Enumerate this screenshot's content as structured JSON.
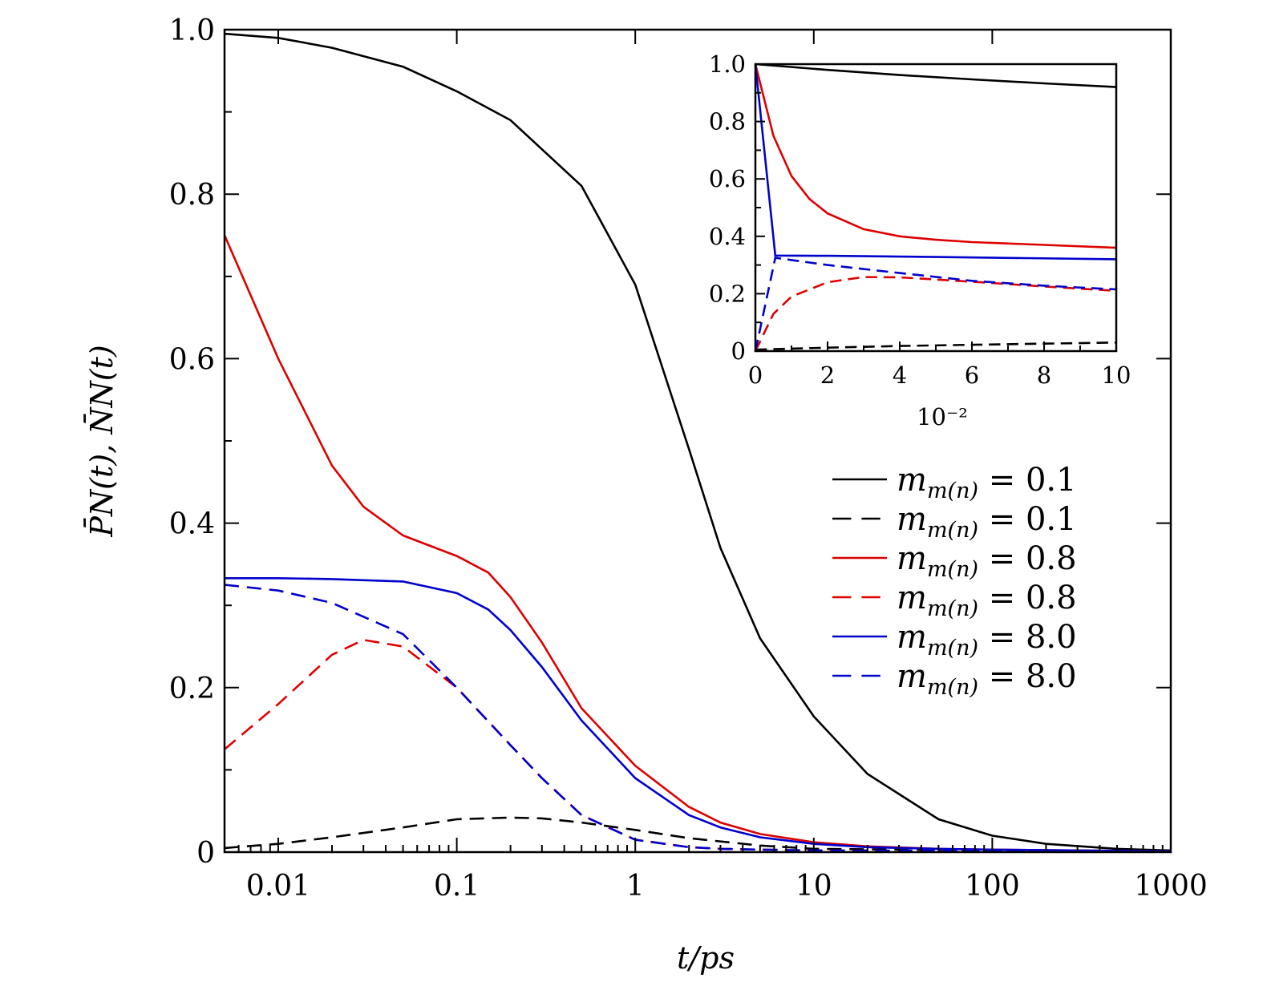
{
  "chart_data": [
    {
      "type": "line",
      "title": "",
      "xlabel": "t/ps",
      "ylabel": "P̄N(t), N̄N(t)",
      "xscale": "log",
      "xlim": [
        0.005,
        1000
      ],
      "ylim": [
        0,
        1.0
      ],
      "xticks": [
        {
          "value": 0.01,
          "label": "0.01"
        },
        {
          "value": 0.1,
          "label": "0.1"
        },
        {
          "value": 1,
          "label": "1"
        },
        {
          "value": 10,
          "label": "10"
        },
        {
          "value": 100,
          "label": "100"
        },
        {
          "value": 1000,
          "label": "1000"
        }
      ],
      "yticks": [
        {
          "value": 0,
          "label": "0"
        },
        {
          "value": 0.2,
          "label": "0.2"
        },
        {
          "value": 0.4,
          "label": "0.4"
        },
        {
          "value": 0.6,
          "label": "0.6"
        },
        {
          "value": 0.8,
          "label": "0.8"
        },
        {
          "value": 1.0,
          "label": "1.0"
        }
      ],
      "grid": false,
      "legend_position": "right",
      "series": [
        {
          "name": "m_m(n) = 0.1",
          "legend_var": "m",
          "legend_sub": "m(n)",
          "legend_value": "0.1",
          "color": "#000000",
          "dash": "solid",
          "x": [
            0.005,
            0.01,
            0.02,
            0.05,
            0.1,
            0.2,
            0.5,
            1,
            2,
            3,
            5,
            10,
            20,
            50,
            100,
            200,
            500,
            1000
          ],
          "y": [
            0.995,
            0.99,
            0.978,
            0.955,
            0.925,
            0.89,
            0.81,
            0.69,
            0.49,
            0.37,
            0.26,
            0.165,
            0.095,
            0.04,
            0.02,
            0.01,
            0.004,
            0.002
          ]
        },
        {
          "name": "m_m(n) = 0.1",
          "legend_var": "m",
          "legend_sub": "m(n)",
          "legend_value": "0.1",
          "color": "#000000",
          "dash": "dashed",
          "x": [
            0.005,
            0.01,
            0.02,
            0.05,
            0.1,
            0.2,
            0.3,
            0.5,
            1,
            2,
            5,
            10,
            100,
            1000
          ],
          "y": [
            0.005,
            0.01,
            0.018,
            0.03,
            0.04,
            0.042,
            0.041,
            0.036,
            0.027,
            0.017,
            0.008,
            0.004,
            0.002,
            0.001
          ]
        },
        {
          "name": "m_m(n) = 0.8",
          "legend_var": "m",
          "legend_sub": "m(n)",
          "legend_value": "0.8",
          "color": "#dd0000",
          "dash": "solid",
          "x": [
            0.005,
            0.01,
            0.02,
            0.03,
            0.05,
            0.1,
            0.15,
            0.2,
            0.3,
            0.5,
            1,
            2,
            3,
            5,
            10,
            20,
            50,
            100,
            1000
          ],
          "y": [
            0.75,
            0.6,
            0.47,
            0.42,
            0.385,
            0.36,
            0.34,
            0.31,
            0.255,
            0.175,
            0.105,
            0.055,
            0.036,
            0.022,
            0.012,
            0.007,
            0.004,
            0.003,
            0.001
          ]
        },
        {
          "name": "m_m(n) = 0.8",
          "legend_var": "m",
          "legend_sub": "m(n)",
          "legend_value": "0.8",
          "color": "#dd0000",
          "dash": "dashed",
          "x": [
            0.005,
            0.01,
            0.02,
            0.03,
            0.05,
            0.1,
            0.2,
            0.3,
            0.5,
            1,
            2,
            3,
            5,
            10,
            1000
          ],
          "y": [
            0.125,
            0.18,
            0.24,
            0.258,
            0.25,
            0.2,
            0.13,
            0.09,
            0.045,
            0.015,
            0.006,
            0.004,
            0.003,
            0.002,
            0.001
          ]
        },
        {
          "name": "m_m(n) = 8.0",
          "legend_var": "m",
          "legend_sub": "m(n)",
          "legend_value": "8.0",
          "color": "#0000cc",
          "dash": "solid",
          "x": [
            0.005,
            0.01,
            0.02,
            0.05,
            0.1,
            0.15,
            0.2,
            0.3,
            0.5,
            1,
            2,
            3,
            5,
            10,
            20,
            50,
            100,
            1000
          ],
          "y": [
            0.333,
            0.333,
            0.332,
            0.329,
            0.315,
            0.295,
            0.27,
            0.225,
            0.16,
            0.09,
            0.045,
            0.03,
            0.018,
            0.01,
            0.006,
            0.004,
            0.003,
            0.001
          ]
        },
        {
          "name": "m_m(n) = 8.0",
          "legend_var": "m",
          "legend_sub": "m(n)",
          "legend_value": "8.0",
          "color": "#0000cc",
          "dash": "dashed",
          "x": [
            0.005,
            0.01,
            0.02,
            0.05,
            0.1,
            0.2,
            0.3,
            0.5,
            1,
            2,
            3,
            5,
            10,
            1000
          ],
          "y": [
            0.325,
            0.318,
            0.303,
            0.265,
            0.2,
            0.13,
            0.09,
            0.045,
            0.015,
            0.006,
            0.004,
            0.003,
            0.002,
            0.001
          ]
        }
      ]
    },
    {
      "type": "line",
      "title": "",
      "xlabel": "10⁻²",
      "ylabel": "",
      "xlim": [
        0,
        10
      ],
      "ylim": [
        0,
        1.0
      ],
      "xticks": [
        {
          "value": 0,
          "label": "0"
        },
        {
          "value": 2,
          "label": "2"
        },
        {
          "value": 4,
          "label": "4"
        },
        {
          "value": 6,
          "label": "6"
        },
        {
          "value": 8,
          "label": "8"
        },
        {
          "value": 10,
          "label": "10"
        }
      ],
      "yticks": [
        {
          "value": 0,
          "label": "0"
        },
        {
          "value": 0.2,
          "label": "0.2"
        },
        {
          "value": 0.4,
          "label": "0.4"
        },
        {
          "value": 0.6,
          "label": "0.6"
        },
        {
          "value": 0.8,
          "label": "0.8"
        },
        {
          "value": 1.0,
          "label": "1.0"
        }
      ],
      "grid": false,
      "series": [
        {
          "color": "#000000",
          "dash": "solid",
          "x": [
            0,
            2,
            4,
            6,
            8,
            10
          ],
          "y": [
            1.0,
            0.98,
            0.962,
            0.947,
            0.933,
            0.92
          ]
        },
        {
          "color": "#000000",
          "dash": "dashed",
          "x": [
            0,
            2,
            4,
            6,
            8,
            10
          ],
          "y": [
            0.005,
            0.012,
            0.018,
            0.022,
            0.026,
            0.03
          ]
        },
        {
          "color": "#dd0000",
          "dash": "solid",
          "x": [
            0,
            0.5,
            1,
            1.5,
            2,
            3,
            4,
            5,
            6,
            8,
            10
          ],
          "y": [
            1.0,
            0.75,
            0.61,
            0.53,
            0.48,
            0.425,
            0.4,
            0.388,
            0.38,
            0.37,
            0.36
          ]
        },
        {
          "color": "#dd0000",
          "dash": "dashed",
          "x": [
            0,
            0.5,
            1,
            2,
            3,
            4,
            6,
            8,
            10
          ],
          "y": [
            0,
            0.13,
            0.19,
            0.24,
            0.258,
            0.257,
            0.242,
            0.225,
            0.21
          ]
        },
        {
          "color": "#0000cc",
          "dash": "solid",
          "x": [
            0,
            0.55,
            2,
            5,
            10
          ],
          "y": [
            1.0,
            0.333,
            0.332,
            0.328,
            0.32
          ]
        },
        {
          "color": "#0000cc",
          "dash": "dashed",
          "x": [
            0,
            0.55,
            2,
            4,
            6,
            8,
            10
          ],
          "y": [
            0,
            0.325,
            0.3,
            0.272,
            0.245,
            0.228,
            0.215
          ]
        }
      ]
    }
  ]
}
